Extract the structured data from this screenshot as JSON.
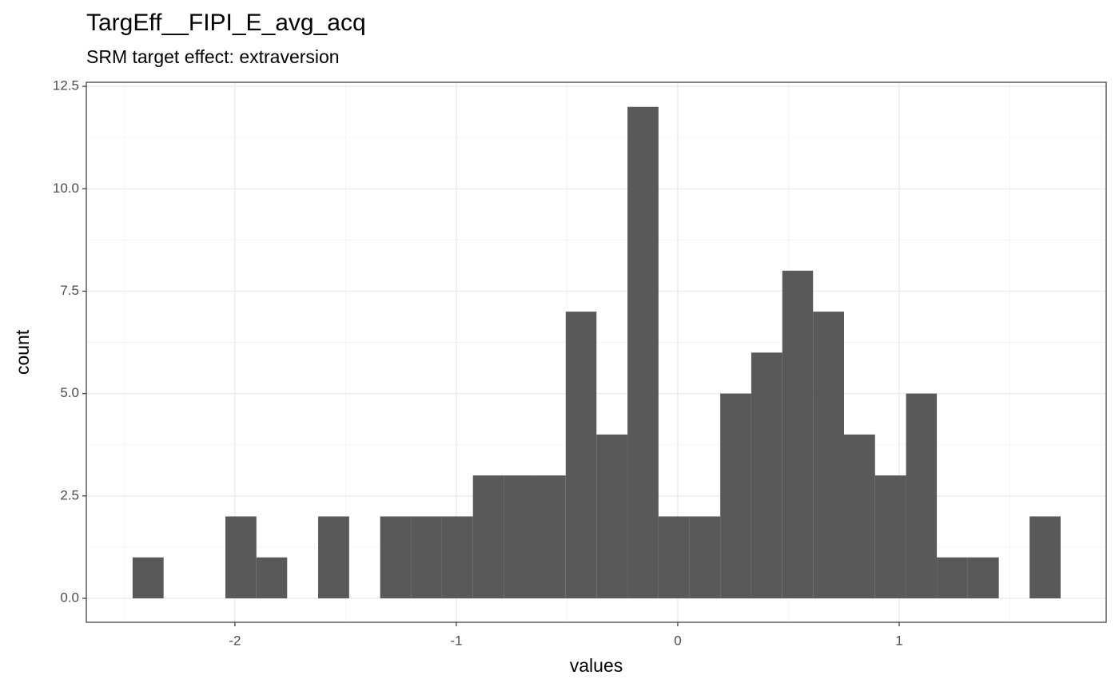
{
  "chart_data": {
    "type": "histogram",
    "title": "TargEff__FIPI_E_avg_acq",
    "subtitle": "SRM target effect: extraversion",
    "x_label": "values",
    "y_label": "count",
    "bins": [
      -2.462,
      -2.322,
      -2.183,
      -2.043,
      -1.903,
      -1.764,
      -1.624,
      -1.484,
      -1.344,
      -1.205,
      -1.065,
      -0.925,
      -0.786,
      -0.646,
      -0.506,
      -0.367,
      -0.227,
      -0.087,
      0.053,
      0.192,
      0.332,
      0.472,
      0.611,
      0.751,
      0.891,
      1.031,
      1.17,
      1.31,
      1.45,
      1.589,
      1.729
    ],
    "counts": [
      1,
      0,
      0,
      2,
      1,
      0,
      2,
      0,
      2,
      2,
      2,
      3,
      3,
      3,
      7,
      4,
      12,
      2,
      2,
      5,
      6,
      8,
      7,
      4,
      3,
      5,
      1,
      1,
      0,
      2
    ],
    "color": "#595959",
    "xlim": [
      -2.671,
      1.935
    ],
    "ylim": [
      -0.585,
      12.6
    ],
    "xticks": [
      -2,
      -1,
      0,
      1
    ],
    "yticks": [
      {
        "value": 0,
        "label": "0.0"
      },
      {
        "value": 2.5,
        "label": "2.5"
      },
      {
        "value": 5,
        "label": "5.0"
      },
      {
        "value": 7.5,
        "label": "7.5"
      },
      {
        "value": 10,
        "label": "10.0"
      },
      {
        "value": 12.5,
        "label": "12.5"
      }
    ],
    "grid": true
  }
}
